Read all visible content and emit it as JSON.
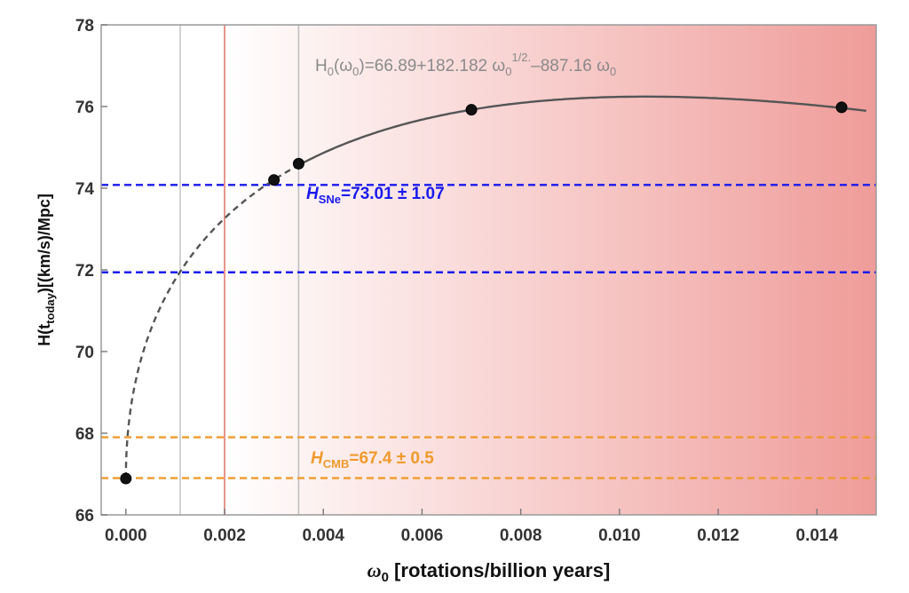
{
  "chart_data": {
    "type": "line",
    "xlabel_main": "ω",
    "xlabel_sub": "0",
    "xlabel_rest": " [rotations/billion years]",
    "ylabel_pre": "H(t",
    "ylabel_sub": "today",
    "ylabel_post": ")[(km/s)/Mpc]",
    "xlim": [
      -0.0005,
      0.0152
    ],
    "ylim": [
      66,
      78
    ],
    "xticks": [
      "0.000",
      "0.002",
      "0.004",
      "0.006",
      "0.008",
      "0.010",
      "0.012",
      "0.014"
    ],
    "xtick_values": [
      0,
      0.002,
      0.004,
      0.006,
      0.008,
      0.01,
      0.012,
      0.014
    ],
    "yticks": [
      "66",
      "68",
      "70",
      "72",
      "74",
      "76",
      "78"
    ],
    "ytick_values": [
      66,
      68,
      70,
      72,
      74,
      76,
      78
    ],
    "formula": {
      "pre": "H",
      "sub0": "0",
      "mid1": "(ω",
      "sub1": "0",
      "mid2": ")=66.89+182.182 ω",
      "sub2": "0",
      "sup": "1/2.",
      "mid3": "–887.16 ω",
      "sub3": "0"
    },
    "fit": {
      "a": 66.89,
      "b": 182.182,
      "c": -887.16
    },
    "fit_dashed_until": 0.0035,
    "fit_x_end": 0.015,
    "points": [
      {
        "x": 0.0,
        "y": 66.89
      },
      {
        "x": 0.003,
        "y": 74.2
      },
      {
        "x": 0.0035,
        "y": 74.6
      },
      {
        "x": 0.007,
        "y": 75.92
      },
      {
        "x": 0.0145,
        "y": 75.98
      }
    ],
    "bands": [
      {
        "label_pre": "H",
        "label_sub": "SNe",
        "label_post": "=73.01 ± 1.07",
        "center": 73.01,
        "lower": 71.94,
        "upper": 74.08,
        "color": "#1a1aee"
      },
      {
        "label_pre": "H",
        "label_sub": "CMB",
        "label_post": "=67.4 ± 0.5",
        "center": 67.4,
        "lower": 66.9,
        "upper": 67.9,
        "color": "#f09a2c"
      }
    ],
    "vlines": [
      {
        "x": 0.0011,
        "color": "#c8c8c8"
      },
      {
        "x": 0.002,
        "color": "#e07a6e"
      },
      {
        "x": 0.0035,
        "color": "#c0c0c0"
      }
    ],
    "shade_from": 0.002,
    "colors": {
      "shade_start": "#ffffff",
      "shade_end": "#ef9c99",
      "fit_line": "#555555",
      "point": "#111111"
    }
  }
}
